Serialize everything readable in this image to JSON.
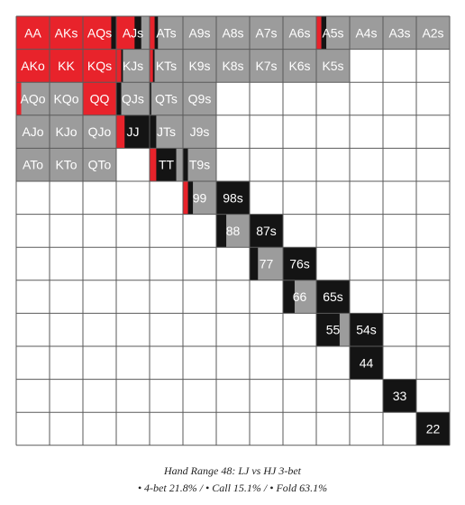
{
  "chart_data": {
    "type": "heatmap",
    "grid_rank_order": [
      "A",
      "K",
      "Q",
      "J",
      "T",
      "9",
      "8",
      "7",
      "6",
      "5",
      "4",
      "3",
      "2"
    ],
    "colors": {
      "fourbet": "#e8232b",
      "call": "#141414",
      "fold": "#9c9c9c",
      "out": "#ffffff"
    },
    "legend_order": [
      "fourbet",
      "call",
      "fold"
    ],
    "cells": [
      {
        "hand": "AA",
        "row": 0,
        "col": 0,
        "fourbet": 1.0,
        "call": 0.0,
        "fold": 0.0
      },
      {
        "hand": "AKs",
        "row": 0,
        "col": 1,
        "fourbet": 1.0,
        "call": 0.0,
        "fold": 0.0
      },
      {
        "hand": "AQs",
        "row": 0,
        "col": 2,
        "fourbet": 0.85,
        "call": 0.15,
        "fold": 0.0
      },
      {
        "hand": "AJs",
        "row": 0,
        "col": 3,
        "fourbet": 0.55,
        "call": 0.2,
        "fold": 0.25
      },
      {
        "hand": "ATs",
        "row": 0,
        "col": 4,
        "fourbet": 0.15,
        "call": 0.1,
        "fold": 0.75
      },
      {
        "hand": "A9s",
        "row": 0,
        "col": 5,
        "fourbet": 0.0,
        "call": 0.0,
        "fold": 1.0
      },
      {
        "hand": "A8s",
        "row": 0,
        "col": 6,
        "fourbet": 0.0,
        "call": 0.0,
        "fold": 1.0
      },
      {
        "hand": "A7s",
        "row": 0,
        "col": 7,
        "fourbet": 0.0,
        "call": 0.0,
        "fold": 1.0
      },
      {
        "hand": "A6s",
        "row": 0,
        "col": 8,
        "fourbet": 0.0,
        "call": 0.0,
        "fold": 1.0
      },
      {
        "hand": "A5s",
        "row": 0,
        "col": 9,
        "fourbet": 0.15,
        "call": 0.15,
        "fold": 0.7
      },
      {
        "hand": "A4s",
        "row": 0,
        "col": 10,
        "fourbet": 0.0,
        "call": 0.0,
        "fold": 1.0
      },
      {
        "hand": "A3s",
        "row": 0,
        "col": 11,
        "fourbet": 0.0,
        "call": 0.0,
        "fold": 1.0
      },
      {
        "hand": "A2s",
        "row": 0,
        "col": 12,
        "fourbet": 0.0,
        "call": 0.0,
        "fold": 1.0
      },
      {
        "hand": "AKo",
        "row": 1,
        "col": 0,
        "fourbet": 1.0,
        "call": 0.0,
        "fold": 0.0
      },
      {
        "hand": "KK",
        "row": 1,
        "col": 1,
        "fourbet": 1.0,
        "call": 0.0,
        "fold": 0.0
      },
      {
        "hand": "KQs",
        "row": 1,
        "col": 2,
        "fourbet": 1.0,
        "call": 0.0,
        "fold": 0.0
      },
      {
        "hand": "KJs",
        "row": 1,
        "col": 3,
        "fourbet": 0.15,
        "call": 0.05,
        "fold": 0.8
      },
      {
        "hand": "KTs",
        "row": 1,
        "col": 4,
        "fourbet": 0.1,
        "call": 0.05,
        "fold": 0.85
      },
      {
        "hand": "K9s",
        "row": 1,
        "col": 5,
        "fourbet": 0.0,
        "call": 0.0,
        "fold": 1.0
      },
      {
        "hand": "K8s",
        "row": 1,
        "col": 6,
        "fourbet": 0.0,
        "call": 0.0,
        "fold": 1.0
      },
      {
        "hand": "K7s",
        "row": 1,
        "col": 7,
        "fourbet": 0.0,
        "call": 0.0,
        "fold": 1.0
      },
      {
        "hand": "K6s",
        "row": 1,
        "col": 8,
        "fourbet": 0.0,
        "call": 0.0,
        "fold": 1.0
      },
      {
        "hand": "K5s",
        "row": 1,
        "col": 9,
        "fourbet": 0.0,
        "call": 0.0,
        "fold": 1.0
      },
      {
        "hand": "AQo",
        "row": 2,
        "col": 0,
        "fourbet": 0.15,
        "call": 0.0,
        "fold": 0.85
      },
      {
        "hand": "KQo",
        "row": 2,
        "col": 1,
        "fourbet": 0.0,
        "call": 0.0,
        "fold": 1.0
      },
      {
        "hand": "QQ",
        "row": 2,
        "col": 2,
        "fourbet": 1.0,
        "call": 0.0,
        "fold": 0.0
      },
      {
        "hand": "QJs",
        "row": 2,
        "col": 3,
        "fourbet": 0.0,
        "call": 0.15,
        "fold": 0.85
      },
      {
        "hand": "QTs",
        "row": 2,
        "col": 4,
        "fourbet": 0.0,
        "call": 0.05,
        "fold": 0.95
      },
      {
        "hand": "Q9s",
        "row": 2,
        "col": 5,
        "fourbet": 0.0,
        "call": 0.0,
        "fold": 1.0
      },
      {
        "hand": "AJo",
        "row": 3,
        "col": 0,
        "fourbet": 0.0,
        "call": 0.0,
        "fold": 1.0
      },
      {
        "hand": "KJo",
        "row": 3,
        "col": 1,
        "fourbet": 0.0,
        "call": 0.0,
        "fold": 1.0
      },
      {
        "hand": "QJo",
        "row": 3,
        "col": 2,
        "fourbet": 0.0,
        "call": 0.0,
        "fold": 1.0
      },
      {
        "hand": "JJ",
        "row": 3,
        "col": 3,
        "fourbet": 0.25,
        "call": 0.75,
        "fold": 0.0
      },
      {
        "hand": "JTs",
        "row": 3,
        "col": 4,
        "fourbet": 0.0,
        "call": 0.2,
        "fold": 0.8
      },
      {
        "hand": "J9s",
        "row": 3,
        "col": 5,
        "fourbet": 0.0,
        "call": 0.0,
        "fold": 1.0
      },
      {
        "hand": "ATo",
        "row": 4,
        "col": 0,
        "fourbet": 0.0,
        "call": 0.0,
        "fold": 1.0
      },
      {
        "hand": "KTo",
        "row": 4,
        "col": 1,
        "fourbet": 0.0,
        "call": 0.0,
        "fold": 1.0
      },
      {
        "hand": "QTo",
        "row": 4,
        "col": 2,
        "fourbet": 0.0,
        "call": 0.0,
        "fold": 1.0
      },
      {
        "hand": "TT",
        "row": 4,
        "col": 4,
        "fourbet": 0.2,
        "call": 0.6,
        "fold": 0.2
      },
      {
        "hand": "T9s",
        "row": 4,
        "col": 5,
        "fourbet": 0.0,
        "call": 0.15,
        "fold": 0.85
      },
      {
        "hand": "99",
        "row": 5,
        "col": 5,
        "fourbet": 0.15,
        "call": 0.15,
        "fold": 0.7
      },
      {
        "hand": "98s",
        "row": 5,
        "col": 6,
        "fourbet": 0.0,
        "call": 1.0,
        "fold": 0.0
      },
      {
        "hand": "88",
        "row": 6,
        "col": 6,
        "fourbet": 0.0,
        "call": 0.3,
        "fold": 0.7
      },
      {
        "hand": "87s",
        "row": 6,
        "col": 7,
        "fourbet": 0.0,
        "call": 1.0,
        "fold": 0.0
      },
      {
        "hand": "77",
        "row": 7,
        "col": 7,
        "fourbet": 0.0,
        "call": 0.25,
        "fold": 0.75
      },
      {
        "hand": "76s",
        "row": 7,
        "col": 8,
        "fourbet": 0.0,
        "call": 1.0,
        "fold": 0.0
      },
      {
        "hand": "66",
        "row": 8,
        "col": 8,
        "fourbet": 0.0,
        "call": 0.35,
        "fold": 0.65
      },
      {
        "hand": "65s",
        "row": 8,
        "col": 9,
        "fourbet": 0.0,
        "call": 1.0,
        "fold": 0.0
      },
      {
        "hand": "55",
        "row": 9,
        "col": 9,
        "fourbet": 0.0,
        "call": 0.7,
        "fold": 0.3
      },
      {
        "hand": "54s",
        "row": 9,
        "col": 10,
        "fourbet": 0.0,
        "call": 1.0,
        "fold": 0.0
      },
      {
        "hand": "44",
        "row": 10,
        "col": 10,
        "fourbet": 0.0,
        "call": 1.0,
        "fold": 0.0
      },
      {
        "hand": "33",
        "row": 11,
        "col": 11,
        "fourbet": 0.0,
        "call": 1.0,
        "fold": 0.0
      },
      {
        "hand": "22",
        "row": 12,
        "col": 12,
        "fourbet": 0.0,
        "call": 1.0,
        "fold": 0.0
      }
    ]
  },
  "caption": {
    "title": "Hand Range 48: LJ vs HJ 3-bet",
    "stats": "• 4-bet 21.8% / • Call 15.1% / • Fold 63.1%"
  }
}
